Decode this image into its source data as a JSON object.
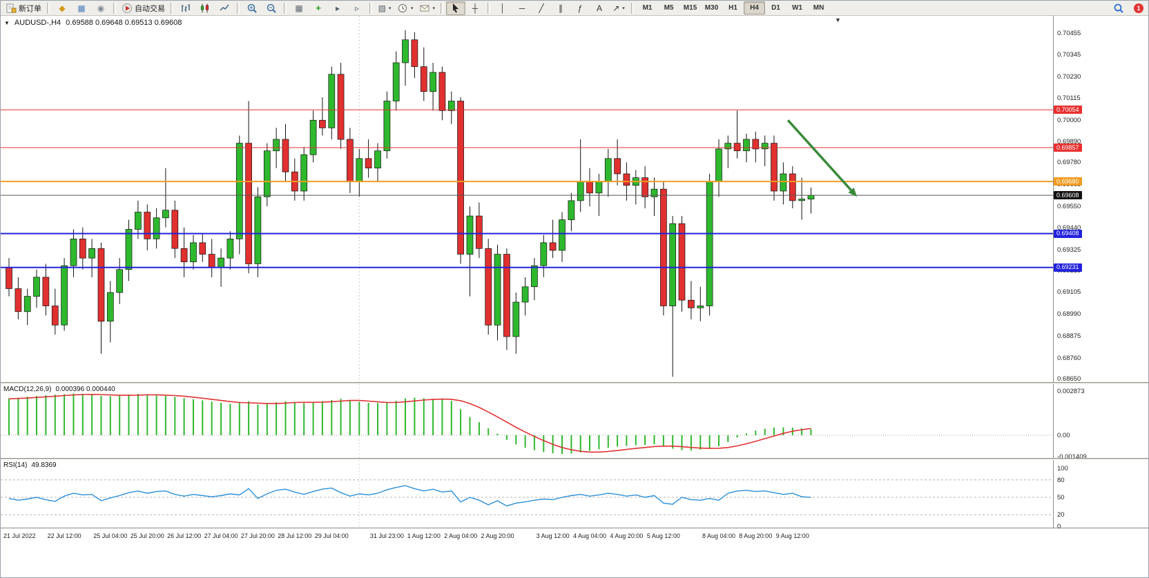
{
  "toolbar": {
    "groups": [
      {
        "items": [
          {
            "name": "new-order-button",
            "icon": "new-order-icon",
            "svg": "neworder",
            "label": "新订单"
          }
        ]
      },
      {
        "items": [
          {
            "name": "market-watch-button",
            "icon": "market-watch-icon",
            "glyph": "◆",
            "color": "#d29a1c"
          },
          {
            "name": "navigator-button",
            "icon": "navigator-icon",
            "glyph": "▦",
            "color": "#4a7ebb"
          },
          {
            "name": "terminal-button",
            "icon": "terminal-icon",
            "glyph": "◉",
            "color": "#7d8a96"
          }
        ]
      },
      {
        "items": [
          {
            "name": "auto-trading-button",
            "icon": "auto-trading-icon",
            "svg": "play",
            "label": "自动交易"
          }
        ]
      },
      {
        "items": [
          {
            "name": "bar-chart-button",
            "icon": "bar-chart-icon",
            "svg": "bars"
          },
          {
            "name": "candlestick-chart-button",
            "icon": "candlestick-icon",
            "svg": "candles"
          },
          {
            "name": "line-chart-button",
            "icon": "line-chart-icon",
            "svg": "linechart"
          }
        ]
      },
      {
        "items": [
          {
            "name": "zoom-in-button",
            "icon": "zoom-in-icon",
            "svg": "zoomin"
          },
          {
            "name": "zoom-out-button",
            "icon": "zoom-out-icon",
            "svg": "zoomout"
          }
        ]
      },
      {
        "items": [
          {
            "name": "tile-windows-button",
            "icon": "tile-windows-icon",
            "glyph": "▦",
            "color": "#5b6770"
          },
          {
            "name": "indicators-button",
            "icon": "indicators-icon",
            "glyph": "+",
            "color": "#1a9b1a",
            "bold": true
          },
          {
            "name": "auto-scroll-button",
            "icon": "auto-scroll-icon",
            "glyph": "▸",
            "color": "#51606b"
          },
          {
            "name": "chart-shift-button",
            "icon": "chart-shift-icon",
            "glyph": "▹",
            "color": "#51606b"
          }
        ]
      },
      {
        "items": [
          {
            "name": "templates-button",
            "icon": "templates-icon",
            "glyph": "▧",
            "color": "#51606b",
            "caret": true
          },
          {
            "name": "period-button",
            "icon": "clock-icon",
            "svg": "clock",
            "caret": true
          },
          {
            "name": "alerts-button",
            "icon": "mail-icon",
            "svg": "mail",
            "caret": true
          }
        ]
      },
      {
        "items": [
          {
            "name": "cursor-button",
            "icon": "cursor-icon",
            "svg": "cursor",
            "active": true
          },
          {
            "name": "crosshair-button",
            "icon": "crosshair-icon",
            "glyph": "┼",
            "color": "#333"
          }
        ]
      },
      {
        "items": [
          {
            "name": "vertical-line-button",
            "icon": "vertical-line-icon",
            "glyph": "│",
            "color": "#333"
          },
          {
            "name": "horizontal-line-button",
            "icon": "horizontal-line-icon",
            "glyph": "─",
            "color": "#333"
          },
          {
            "name": "trendline-button",
            "icon": "trendline-icon",
            "glyph": "╱",
            "color": "#333"
          },
          {
            "name": "channel-button",
            "icon": "channel-icon",
            "glyph": "∥",
            "color": "#333"
          },
          {
            "name": "fibonacci-button",
            "icon": "fibonacci-icon",
            "glyph": "ƒ",
            "color": "#333"
          },
          {
            "name": "text-button",
            "icon": "text-icon",
            "glyph": "A",
            "color": "#333"
          },
          {
            "name": "arrows-button",
            "icon": "arrows-icon",
            "glyph": "↗",
            "color": "#333",
            "caret": true
          }
        ]
      }
    ],
    "timeframes": {
      "items": [
        "M1",
        "M5",
        "M15",
        "M30",
        "H1",
        "H4",
        "D1",
        "W1",
        "MN"
      ],
      "active": "H4"
    },
    "notification_count": "1"
  },
  "chart_data": {
    "type": "candlestick",
    "symbol": "AUDUSD-,H4",
    "title_ohlc": "0.69588 0.69648 0.69513 0.69608",
    "shift_marker": "▼",
    "title_dropdown": "▼",
    "bull_color": "#2eb82e",
    "bear_color": "#e03030",
    "wick_color": "#111111",
    "period_separator_bar": 38,
    "candles": [
      [
        0.6923,
        0.6928,
        0.6908,
        0.6912
      ],
      [
        0.6912,
        0.6918,
        0.6896,
        0.69
      ],
      [
        0.69,
        0.6912,
        0.6893,
        0.6908
      ],
      [
        0.6908,
        0.6922,
        0.6902,
        0.6918
      ],
      [
        0.6918,
        0.6925,
        0.6898,
        0.6903
      ],
      [
        0.6903,
        0.6912,
        0.6888,
        0.6893
      ],
      [
        0.6893,
        0.6928,
        0.689,
        0.6924
      ],
      [
        0.6924,
        0.6943,
        0.6918,
        0.6938
      ],
      [
        0.6938,
        0.6944,
        0.6922,
        0.6928
      ],
      [
        0.6928,
        0.6938,
        0.6918,
        0.6933
      ],
      [
        0.6933,
        0.6936,
        0.6878,
        0.6895
      ],
      [
        0.6895,
        0.6916,
        0.6884,
        0.691
      ],
      [
        0.691,
        0.6928,
        0.6904,
        0.6922
      ],
      [
        0.6922,
        0.6948,
        0.6916,
        0.6943
      ],
      [
        0.6943,
        0.6958,
        0.6938,
        0.6952
      ],
      [
        0.6952,
        0.6956,
        0.6932,
        0.6938
      ],
      [
        0.6938,
        0.6954,
        0.6933,
        0.6949
      ],
      [
        0.6949,
        0.6975,
        0.6944,
        0.6953
      ],
      [
        0.6953,
        0.6958,
        0.6928,
        0.6933
      ],
      [
        0.6933,
        0.6944,
        0.6918,
        0.6926
      ],
      [
        0.6926,
        0.694,
        0.6922,
        0.6936
      ],
      [
        0.6936,
        0.6941,
        0.6926,
        0.693
      ],
      [
        0.693,
        0.6938,
        0.6918,
        0.6923
      ],
      [
        0.6923,
        0.6933,
        0.6913,
        0.6928
      ],
      [
        0.6928,
        0.6942,
        0.6922,
        0.6938
      ],
      [
        0.6938,
        0.6992,
        0.693,
        0.6988
      ],
      [
        0.6988,
        0.701,
        0.692,
        0.6925
      ],
      [
        0.6925,
        0.6965,
        0.6918,
        0.696
      ],
      [
        0.696,
        0.6988,
        0.6955,
        0.6984
      ],
      [
        0.6984,
        0.6996,
        0.6975,
        0.699
      ],
      [
        0.699,
        0.6998,
        0.6968,
        0.6973
      ],
      [
        0.6973,
        0.698,
        0.6958,
        0.6963
      ],
      [
        0.6963,
        0.6986,
        0.6958,
        0.6982
      ],
      [
        0.6982,
        0.7005,
        0.6978,
        0.7
      ],
      [
        0.7,
        0.7012,
        0.6992,
        0.6996
      ],
      [
        0.6996,
        0.7028,
        0.699,
        0.7024
      ],
      [
        0.7024,
        0.703,
        0.6985,
        0.699
      ],
      [
        0.699,
        0.6996,
        0.6962,
        0.6968
      ],
      [
        0.6968,
        0.6985,
        0.696,
        0.698
      ],
      [
        0.698,
        0.699,
        0.697,
        0.6975
      ],
      [
        0.6975,
        0.6988,
        0.6968,
        0.6984
      ],
      [
        0.6984,
        0.7015,
        0.698,
        0.701
      ],
      [
        0.701,
        0.7036,
        0.7005,
        0.703
      ],
      [
        0.703,
        0.7047,
        0.7018,
        0.7042
      ],
      [
        0.7042,
        0.7046,
        0.7022,
        0.7028
      ],
      [
        0.7028,
        0.7038,
        0.701,
        0.7015
      ],
      [
        0.7015,
        0.703,
        0.7005,
        0.7025
      ],
      [
        0.7025,
        0.7028,
        0.7,
        0.7005
      ],
      [
        0.7005,
        0.7015,
        0.6998,
        0.701
      ],
      [
        0.701,
        0.7012,
        0.6925,
        0.693
      ],
      [
        0.693,
        0.6955,
        0.6908,
        0.695
      ],
      [
        0.695,
        0.6957,
        0.6928,
        0.6933
      ],
      [
        0.6933,
        0.6938,
        0.6888,
        0.6893
      ],
      [
        0.6893,
        0.6935,
        0.6885,
        0.693
      ],
      [
        0.693,
        0.6933,
        0.688,
        0.6887
      ],
      [
        0.6887,
        0.691,
        0.6878,
        0.6905
      ],
      [
        0.6905,
        0.6918,
        0.6898,
        0.6913
      ],
      [
        0.6913,
        0.6928,
        0.6906,
        0.6924
      ],
      [
        0.6924,
        0.694,
        0.6918,
        0.6936
      ],
      [
        0.6936,
        0.6948,
        0.6928,
        0.6932
      ],
      [
        0.6932,
        0.6952,
        0.6926,
        0.6948
      ],
      [
        0.6948,
        0.6962,
        0.6942,
        0.6958
      ],
      [
        0.6958,
        0.699,
        0.6952,
        0.6968
      ],
      [
        0.6968,
        0.6975,
        0.6955,
        0.6962
      ],
      [
        0.6962,
        0.6972,
        0.695,
        0.6968
      ],
      [
        0.6968,
        0.6985,
        0.696,
        0.698
      ],
      [
        0.698,
        0.699,
        0.6966,
        0.6972
      ],
      [
        0.6972,
        0.6978,
        0.6958,
        0.6966
      ],
      [
        0.6966,
        0.6974,
        0.6956,
        0.697
      ],
      [
        0.697,
        0.6976,
        0.6954,
        0.696
      ],
      [
        0.696,
        0.697,
        0.695,
        0.6964
      ],
      [
        0.6964,
        0.6968,
        0.6898,
        0.6903
      ],
      [
        0.6903,
        0.695,
        0.6866,
        0.6946
      ],
      [
        0.6946,
        0.695,
        0.69,
        0.6906
      ],
      [
        0.6906,
        0.6916,
        0.6896,
        0.6902
      ],
      [
        0.6902,
        0.6913,
        0.6895,
        0.6903
      ],
      [
        0.6903,
        0.6972,
        0.6898,
        0.6968
      ],
      [
        0.6968,
        0.699,
        0.696,
        0.6985
      ],
      [
        0.6985,
        0.6992,
        0.6975,
        0.6988
      ],
      [
        0.6988,
        0.7005,
        0.698,
        0.6984
      ],
      [
        0.6984,
        0.6993,
        0.6978,
        0.699
      ],
      [
        0.699,
        0.6994,
        0.6978,
        0.6985
      ],
      [
        0.6985,
        0.6992,
        0.6976,
        0.6988
      ],
      [
        0.6988,
        0.6992,
        0.6958,
        0.6963
      ],
      [
        0.6963,
        0.6978,
        0.6956,
        0.6972
      ],
      [
        0.6972,
        0.6976,
        0.6954,
        0.6958
      ],
      [
        0.6958,
        0.697,
        0.6948,
        0.69588
      ],
      [
        0.69588,
        0.69648,
        0.69513,
        0.69608
      ]
    ],
    "hlines": [
      {
        "price": 0.70054,
        "label": "0.70054",
        "color": "#e83030",
        "width": 1
      },
      {
        "price": 0.69857,
        "label": "0.69857",
        "color": "#e83030",
        "width": 1
      },
      {
        "price": 0.6968,
        "label": "0.69680",
        "color": "#f29b20",
        "width": 2
      },
      {
        "price": 0.69408,
        "label": "0.69408",
        "color": "#2222dd",
        "width": 2
      },
      {
        "price": 0.69231,
        "label": "0.69231",
        "color": "#2222dd",
        "width": 2
      }
    ],
    "current_price": {
      "price": 0.69608,
      "label": "0.69608",
      "line_color": "#555555",
      "box_color": "#111111"
    },
    "price_axis": [
      "0.70455",
      "0.70345",
      "0.70230",
      "0.70115",
      "0.70000",
      "0.69890",
      "0.69780",
      "0.69665",
      "0.69550",
      "0.69440",
      "0.69325",
      "0.69215",
      "0.69105",
      "0.68990",
      "0.68875",
      "0.68760",
      "0.68650"
    ],
    "time_ticks": [
      {
        "label": "21 Jul 2022",
        "bar": 0
      },
      {
        "label": "22 Jul 12:00",
        "bar": 6
      },
      {
        "label": "25 Jul 04:00",
        "bar": 11
      },
      {
        "label": "25 Jul 20:00",
        "bar": 15
      },
      {
        "label": "26 Jul 12:00",
        "bar": 19
      },
      {
        "label": "27 Jul 04:00",
        "bar": 23
      },
      {
        "label": "27 Jul 20:00",
        "bar": 27
      },
      {
        "label": "28 Jul 12:00",
        "bar": 31
      },
      {
        "label": "29 Jul 04:00",
        "bar": 35
      },
      {
        "label": "31 Jul 23:00",
        "bar": 41
      },
      {
        "label": "1 Aug 12:00",
        "bar": 45
      },
      {
        "label": "2 Aug 04:00",
        "bar": 49
      },
      {
        "label": "2 Aug 20:00",
        "bar": 53
      },
      {
        "label": "3 Aug 12:00",
        "bar": 59
      },
      {
        "label": "4 Aug 04:00",
        "bar": 63
      },
      {
        "label": "4 Aug 20:00",
        "bar": 67
      },
      {
        "label": "5 Aug 12:00",
        "bar": 71
      },
      {
        "label": "8 Aug 04:00",
        "bar": 77
      },
      {
        "label": "8 Aug 20:00",
        "bar": 81
      },
      {
        "label": "9 Aug 12:00",
        "bar": 85
      }
    ],
    "arrow": {
      "from_bar": 84.5,
      "from_price": 0.7,
      "to_bar": 92,
      "to_price": 0.696,
      "color": "#3a8a3a",
      "width": 3.5
    },
    "macd": {
      "title": "MACD(12,26,9)",
      "values_text": "0.000396 0.000440",
      "hist_color": "#2eb82e",
      "signal_color": "#e03131",
      "axis": [
        {
          "v": 0.002873,
          "label": "0.002873"
        },
        {
          "v": 0,
          "label": "0.00"
        },
        {
          "v": -0.001409,
          "label": "-0.001409"
        }
      ],
      "hist": [
        0.0024,
        0.00245,
        0.00252,
        0.00256,
        0.00262,
        0.00265,
        0.00268,
        0.00272,
        0.0027,
        0.00265,
        0.00258,
        0.00255,
        0.0026,
        0.00266,
        0.0027,
        0.00266,
        0.0026,
        0.00258,
        0.0025,
        0.00242,
        0.00235,
        0.00228,
        0.0022,
        0.00212,
        0.00205,
        0.00215,
        0.00222,
        0.002,
        0.00205,
        0.00215,
        0.00222,
        0.00218,
        0.0021,
        0.00215,
        0.00222,
        0.0023,
        0.00238,
        0.0023,
        0.00218,
        0.00212,
        0.0021,
        0.00215,
        0.00225,
        0.0024,
        0.00245,
        0.00242,
        0.00238,
        0.00232,
        0.00225,
        0.0017,
        0.0012,
        0.00085,
        0.00045,
        0.0001,
        -0.0003,
        -0.0006,
        -0.00082,
        -0.00098,
        -0.0011,
        -0.00118,
        -0.00122,
        -0.0012,
        -0.00112,
        -0.00102,
        -0.00092,
        -0.00082,
        -0.00075,
        -0.0007,
        -0.00066,
        -0.00063,
        -0.0006,
        -0.00072,
        -0.00088,
        -0.00098,
        -0.001,
        -0.00094,
        -0.00085,
        -0.00072,
        -0.00045,
        -0.00015,
        0.00012,
        0.0003,
        0.00042,
        0.0005,
        0.00052,
        0.0005,
        0.00045,
        0.000396
      ],
      "signal": [
        0.00238,
        0.0024,
        0.00243,
        0.00247,
        0.00251,
        0.00255,
        0.00259,
        0.00263,
        0.00266,
        0.00267,
        0.00266,
        0.00263,
        0.00261,
        0.00261,
        0.00262,
        0.00264,
        0.00264,
        0.00262,
        0.00259,
        0.00255,
        0.00249,
        0.00242,
        0.00235,
        0.00227,
        0.0022,
        0.00214,
        0.00212,
        0.0021,
        0.00207,
        0.00207,
        0.0021,
        0.00214,
        0.00215,
        0.00215,
        0.00216,
        0.00219,
        0.00223,
        0.00227,
        0.00227,
        0.00223,
        0.00218,
        0.00214,
        0.00214,
        0.00218,
        0.00224,
        0.0023,
        0.00234,
        0.00236,
        0.00235,
        0.00226,
        0.00207,
        0.00182,
        0.00152,
        0.0012,
        0.00086,
        0.00052,
        0.00021,
        -8e-05,
        -0.00035,
        -0.0006,
        -0.0008,
        -0.00095,
        -0.00105,
        -0.0011,
        -0.0011,
        -0.00106,
        -0.001,
        -0.00093,
        -0.00086,
        -0.0008,
        -0.00074,
        -0.00071,
        -0.00071,
        -0.00075,
        -0.0008,
        -0.00084,
        -0.00086,
        -0.00085,
        -0.0008,
        -0.0007,
        -0.00056,
        -0.0004,
        -0.00022,
        -5e-05,
        0.00012,
        0.00026,
        0.00036,
        0.00044
      ]
    },
    "rsi": {
      "title": "RSI(14)",
      "value_text": "49.8369",
      "color": "#2a8fd8",
      "levels": [
        80,
        50,
        20
      ],
      "axis": [
        {
          "v": 100,
          "label": "100"
        },
        {
          "v": 80,
          "label": "80"
        },
        {
          "v": 50,
          "label": "50"
        },
        {
          "v": 20,
          "label": "20"
        },
        {
          "v": 0,
          "label": "0"
        }
      ],
      "values": [
        48,
        45,
        47,
        50,
        46,
        43,
        52,
        57,
        54,
        55,
        44,
        49,
        53,
        58,
        61,
        57,
        60,
        61,
        55,
        52,
        55,
        53,
        51,
        53,
        56,
        54,
        65,
        48,
        56,
        62,
        64,
        59,
        55,
        60,
        64,
        66,
        58,
        52,
        56,
        54,
        57,
        63,
        67,
        70,
        65,
        61,
        64,
        59,
        61,
        42,
        50,
        45,
        37,
        44,
        35,
        40,
        42,
        45,
        47,
        46,
        50,
        53,
        55,
        52,
        54,
        57,
        55,
        52,
        54,
        50,
        53,
        40,
        38,
        50,
        46,
        45,
        48,
        45,
        57,
        61,
        62,
        60,
        61,
        58,
        55,
        57,
        51,
        49.8369
      ]
    }
  }
}
